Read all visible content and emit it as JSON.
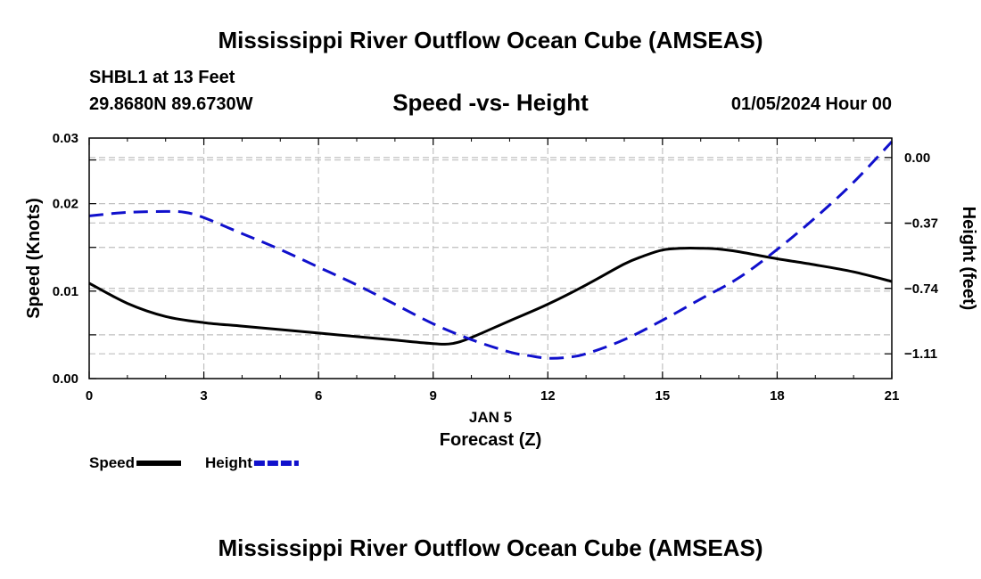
{
  "header": {
    "title": "Mississippi River Outflow Ocean Cube (AMSEAS)",
    "station": "SHBL1 at 13 Feet",
    "coords": "29.8680N  89.6730W",
    "subtitle": "Speed -vs- Height",
    "datetime": "01/05/2024 Hour 00"
  },
  "footer": {
    "title": "Mississippi River Outflow Ocean Cube (AMSEAS)"
  },
  "chart_data": {
    "type": "line",
    "title": "Speed -vs- Height",
    "xlabel": "Forecast (Z)",
    "date_label": "JAN 5",
    "ylabel_left": "Speed (Knots)",
    "ylabel_right": "Height (feet)",
    "x_ticks": [
      0,
      3,
      6,
      9,
      12,
      15,
      18,
      21
    ],
    "x_tick_labels": [
      "0",
      "3",
      "6",
      "9",
      "12",
      "15",
      "18",
      "21"
    ],
    "xlim": [
      0,
      21
    ],
    "y_left_ticks": [
      0,
      0.005,
      0.01,
      0.015,
      0.02,
      0.025,
      0.03
    ],
    "y_left_labels": [
      "0.00",
      "",
      "0.01",
      "",
      "0.02",
      "",
      "0.03"
    ],
    "ylim_left": [
      0,
      0.0275
    ],
    "y_right_ticks": [
      0.0,
      -0.37,
      -0.74,
      -1.11
    ],
    "y_right_labels": [
      "0.00",
      "−0.37",
      "−0.74",
      "−1.11"
    ],
    "ylim_right": [
      -1.25,
      0.11
    ],
    "grid": true,
    "legend_position": "bottom-left",
    "series": [
      {
        "name": "Speed",
        "axis": "left",
        "color": "#000000",
        "style": "solid",
        "x": [
          0,
          1,
          2,
          3,
          4,
          5,
          6,
          7,
          8,
          9,
          9.5,
          10,
          11,
          12,
          13,
          14,
          14.5,
          15,
          15.5,
          16,
          16.5,
          17,
          18,
          19,
          20,
          21
        ],
        "values": [
          0.0109,
          0.0086,
          0.0071,
          0.0064,
          0.006,
          0.0056,
          0.0052,
          0.0048,
          0.0044,
          0.004,
          0.004,
          0.0047,
          0.0066,
          0.0085,
          0.0107,
          0.0131,
          0.014,
          0.0147,
          0.0149,
          0.0149,
          0.0148,
          0.0145,
          0.0137,
          0.013,
          0.0122,
          0.0111
        ]
      },
      {
        "name": "Height",
        "axis": "right",
        "color": "#1010cc",
        "style": "dashed",
        "x": [
          0,
          1,
          2,
          2.5,
          3,
          4,
          5,
          6,
          7,
          8,
          9,
          10,
          11,
          11.5,
          12,
          12.5,
          13,
          14,
          15,
          16,
          17,
          18,
          19,
          20,
          21
        ],
        "values": [
          -0.33,
          -0.31,
          -0.305,
          -0.31,
          -0.34,
          -0.43,
          -0.52,
          -0.62,
          -0.72,
          -0.83,
          -0.94,
          -1.03,
          -1.1,
          -1.12,
          -1.135,
          -1.13,
          -1.11,
          -1.03,
          -0.92,
          -0.8,
          -0.68,
          -0.52,
          -0.34,
          -0.14,
          0.09
        ]
      }
    ]
  }
}
